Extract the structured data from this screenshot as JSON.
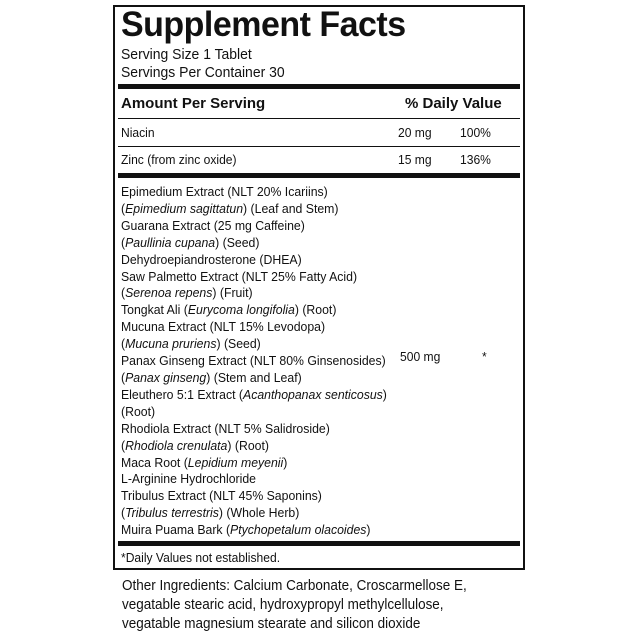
{
  "title": "Supplement Facts",
  "serving_size": "Serving Size 1 Tablet",
  "servings_per_container": "Servings Per Container 30",
  "header": {
    "amount": "Amount Per Serving",
    "dv": "% Daily Value"
  },
  "nutrients": [
    {
      "name": "Niacin",
      "amount": "20 mg",
      "dv": "100%"
    },
    {
      "name": "Zinc (from zinc oxide)",
      "amount": "15 mg",
      "dv": "136%"
    }
  ],
  "blend": {
    "amount": "500 mg",
    "dv": "*",
    "lines": [
      [
        {
          "t": "Epimedium Extract (NLT 20% Icariins)"
        }
      ],
      [
        {
          "t": "("
        },
        {
          "t": "Epimedium sagittatun",
          "i": true
        },
        {
          "t": ") (Leaf and Stem)"
        }
      ],
      [
        {
          "t": "Guarana Extract (25 mg Caffeine)"
        }
      ],
      [
        {
          "t": "("
        },
        {
          "t": "Paullinia cupana",
          "i": true
        },
        {
          "t": ")  (Seed)"
        }
      ],
      [
        {
          "t": "Dehydroepiandrosterone (DHEA)"
        }
      ],
      [
        {
          "t": "Saw Palmetto Extract (NLT 25% Fatty Acid)"
        }
      ],
      [
        {
          "t": "("
        },
        {
          "t": "Serenoa repens",
          "i": true
        },
        {
          "t": ") (Fruit)"
        }
      ],
      [
        {
          "t": "Tongkat Ali ("
        },
        {
          "t": "Eurycoma longifolia",
          "i": true
        },
        {
          "t": ") (Root)"
        }
      ],
      [
        {
          "t": "Mucuna Extract (NLT 15% Levodopa)"
        }
      ],
      [
        {
          "t": "("
        },
        {
          "t": "Mucuna pruriens",
          "i": true
        },
        {
          "t": ") (Seed)"
        }
      ],
      [
        {
          "t": "Panax Ginseng Extract (NLT 80% Ginsenosides)"
        }
      ],
      [
        {
          "t": "("
        },
        {
          "t": "Panax ginseng",
          "i": true
        },
        {
          "t": ") (Stem and Leaf)"
        }
      ],
      [
        {
          "t": "Eleuthero 5:1 Extract ("
        },
        {
          "t": "Acanthopanax senticosus",
          "i": true
        },
        {
          "t": ")"
        }
      ],
      [
        {
          "t": "(Root)"
        }
      ],
      [
        {
          "t": "Rhodiola Extract (NLT 5% Salidroside)"
        }
      ],
      [
        {
          "t": "("
        },
        {
          "t": "Rhodiola crenulata",
          "i": true
        },
        {
          "t": ") (Root)"
        }
      ],
      [
        {
          "t": "Maca Root ("
        },
        {
          "t": "Lepidium meyenii",
          "i": true
        },
        {
          "t": ")"
        }
      ],
      [
        {
          "t": "L-Arginine Hydrochloride"
        }
      ],
      [
        {
          "t": "Tribulus Extract (NLT 45% Saponins)"
        }
      ],
      [
        {
          "t": "("
        },
        {
          "t": "Tribulus terrestris",
          "i": true
        },
        {
          "t": ") (Whole Herb)"
        }
      ],
      [
        {
          "t": "Muira Puama Bark ("
        },
        {
          "t": "Ptychopetalum olacoides",
          "i": true
        },
        {
          "t": ")"
        }
      ]
    ]
  },
  "footnote": "*Daily Values not established.",
  "other_ingredients": [
    "Other Ingredients: Calcium Carbonate, Croscarmellose E,",
    "vegatable stearic acid, hydroxypropyl methylcellulose,",
    "vegatable magnesium stearate and silicon dioxide"
  ]
}
